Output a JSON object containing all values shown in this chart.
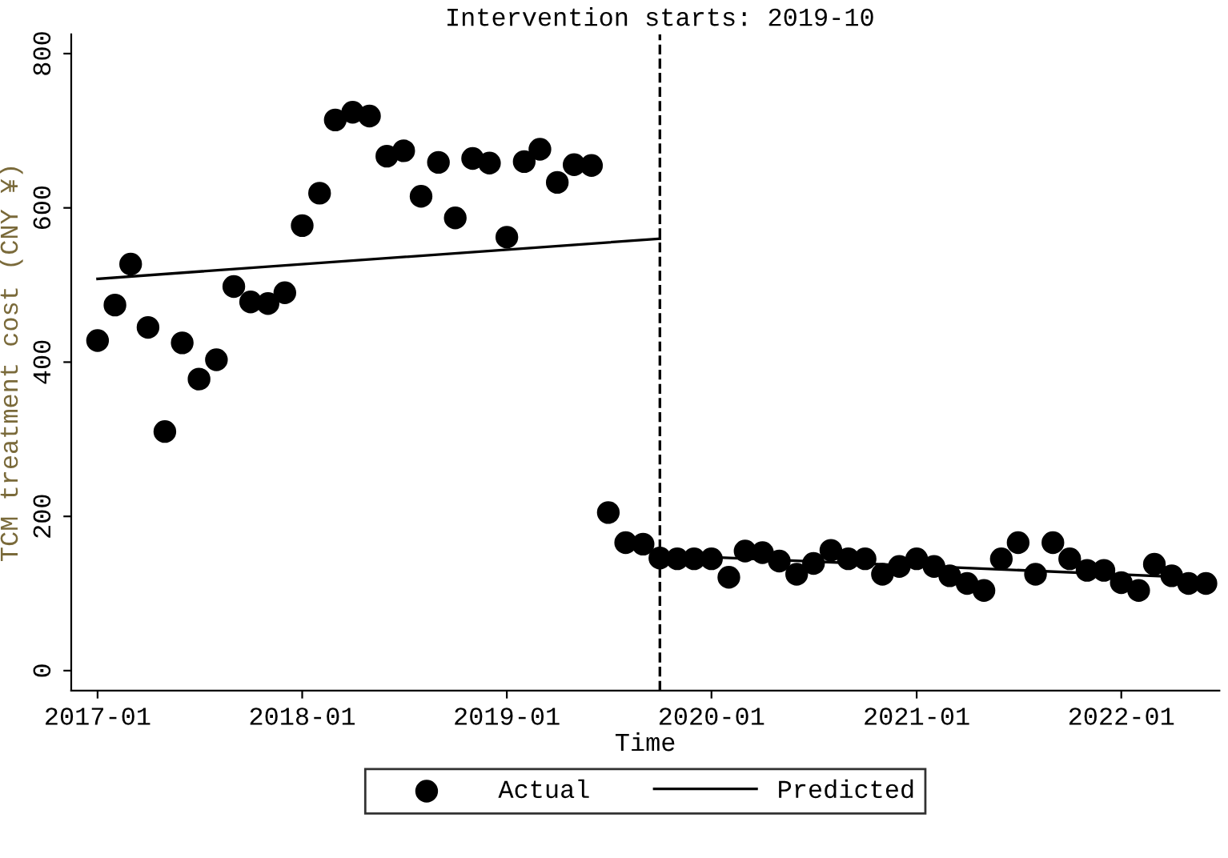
{
  "chart_data": {
    "type": "scatter",
    "xlabel": "Time",
    "ylabel": "TCM treatment cost (CNY ¥)",
    "xlim": [
      "2016-11-15",
      "2022-06-25"
    ],
    "ylim": [
      -26,
      825
    ],
    "xticks": [
      {
        "value": "2017-01",
        "label": "2017-01"
      },
      {
        "value": "2018-01",
        "label": "2018-01"
      },
      {
        "value": "2019-01",
        "label": "2019-01"
      },
      {
        "value": "2020-01",
        "label": "2020-01"
      },
      {
        "value": "2021-01",
        "label": "2021-01"
      },
      {
        "value": "2022-01",
        "label": "2022-01"
      }
    ],
    "yticks": [
      0,
      200,
      400,
      600,
      800
    ],
    "grid": false,
    "legend": "bottom",
    "marker": "circle",
    "ref_lines": [
      {
        "axis": "x",
        "value": "2019-10",
        "label": "Intervention starts: 2019-10",
        "color": "#000000",
        "line_style": "dashed"
      }
    ],
    "series": [
      {
        "name": "Actual",
        "color": "#000000",
        "x": [
          "2017-01",
          "2017-02",
          "2017-03",
          "2017-04",
          "2017-05",
          "2017-06",
          "2017-07",
          "2017-08",
          "2017-09",
          "2017-10",
          "2017-11",
          "2017-12",
          "2018-01",
          "2018-02",
          "2018-03",
          "2018-04",
          "2018-05",
          "2018-06",
          "2018-07",
          "2018-08",
          "2018-09",
          "2018-10",
          "2018-11",
          "2018-12",
          "2019-01",
          "2019-02",
          "2019-03",
          "2019-04",
          "2019-05",
          "2019-06",
          "2019-07",
          "2019-08",
          "2019-09",
          "2019-10",
          "2019-11",
          "2019-12",
          "2020-01",
          "2020-02",
          "2020-03",
          "2020-04",
          "2020-05",
          "2020-06",
          "2020-07",
          "2020-08",
          "2020-09",
          "2020-10",
          "2020-11",
          "2020-12",
          "2021-01",
          "2021-02",
          "2021-03",
          "2021-04",
          "2021-05",
          "2021-06",
          "2021-07",
          "2021-08",
          "2021-09",
          "2021-10",
          "2021-11",
          "2021-12",
          "2022-01",
          "2022-02",
          "2022-03",
          "2022-04",
          "2022-05",
          "2022-06"
        ],
        "values": [
          428,
          474,
          527,
          445,
          310,
          425,
          378,
          403,
          498,
          478,
          476,
          490,
          577,
          619,
          714,
          724,
          719,
          667,
          674,
          615,
          659,
          587,
          664,
          658,
          562,
          660,
          676,
          633,
          656,
          655,
          205,
          166,
          164,
          146,
          145,
          145,
          145,
          121,
          155,
          153,
          142,
          125,
          139,
          156,
          145,
          145,
          125,
          135,
          145,
          135,
          123,
          113,
          104,
          145,
          166,
          125,
          166,
          145,
          130,
          130,
          114,
          104,
          138,
          123,
          113,
          113
        ]
      },
      {
        "name": "Predicted",
        "type": "line",
        "color": "#000000",
        "line_style": "solid",
        "marker": "none",
        "x": [
          "2017-01",
          "2019-10"
        ],
        "values": [
          508,
          560
        ]
      },
      {
        "type": "line",
        "color": "#000000",
        "line_style": "solid",
        "marker": "none",
        "x": [
          "2019-10",
          "2022-06"
        ],
        "values": [
          150,
          120
        ]
      }
    ]
  }
}
